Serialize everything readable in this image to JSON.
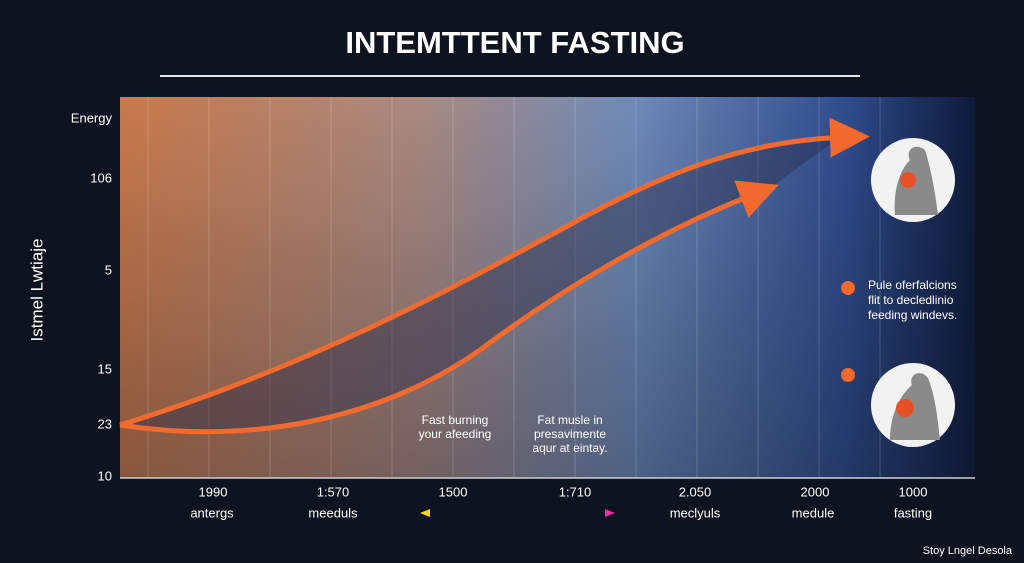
{
  "title": "INTEMTTENT FASTING",
  "y_axis": {
    "title": "Istmel Lwtiaje",
    "labels": [
      "Energy",
      "106",
      "5",
      "15",
      "23",
      "10"
    ]
  },
  "x_axis": {
    "labels": [
      "1990",
      "1:570",
      "1500",
      "1:710",
      "2.050",
      "2000",
      "1000"
    ],
    "sublabels": [
      "antergs",
      "meeduls",
      "meclyuls",
      "medule",
      "fasting"
    ]
  },
  "annotations": [
    {
      "lines": [
        "Fast burning",
        "your afeeding"
      ]
    },
    {
      "lines": [
        "Fat musle in",
        "presavimente",
        "aqur at eintay."
      ]
    }
  ],
  "side_note": {
    "lines": [
      "Pule oferfalcions",
      "flit to decledlinio",
      "feeding windevs."
    ]
  },
  "footer": "Stoy Lngel Desola"
}
